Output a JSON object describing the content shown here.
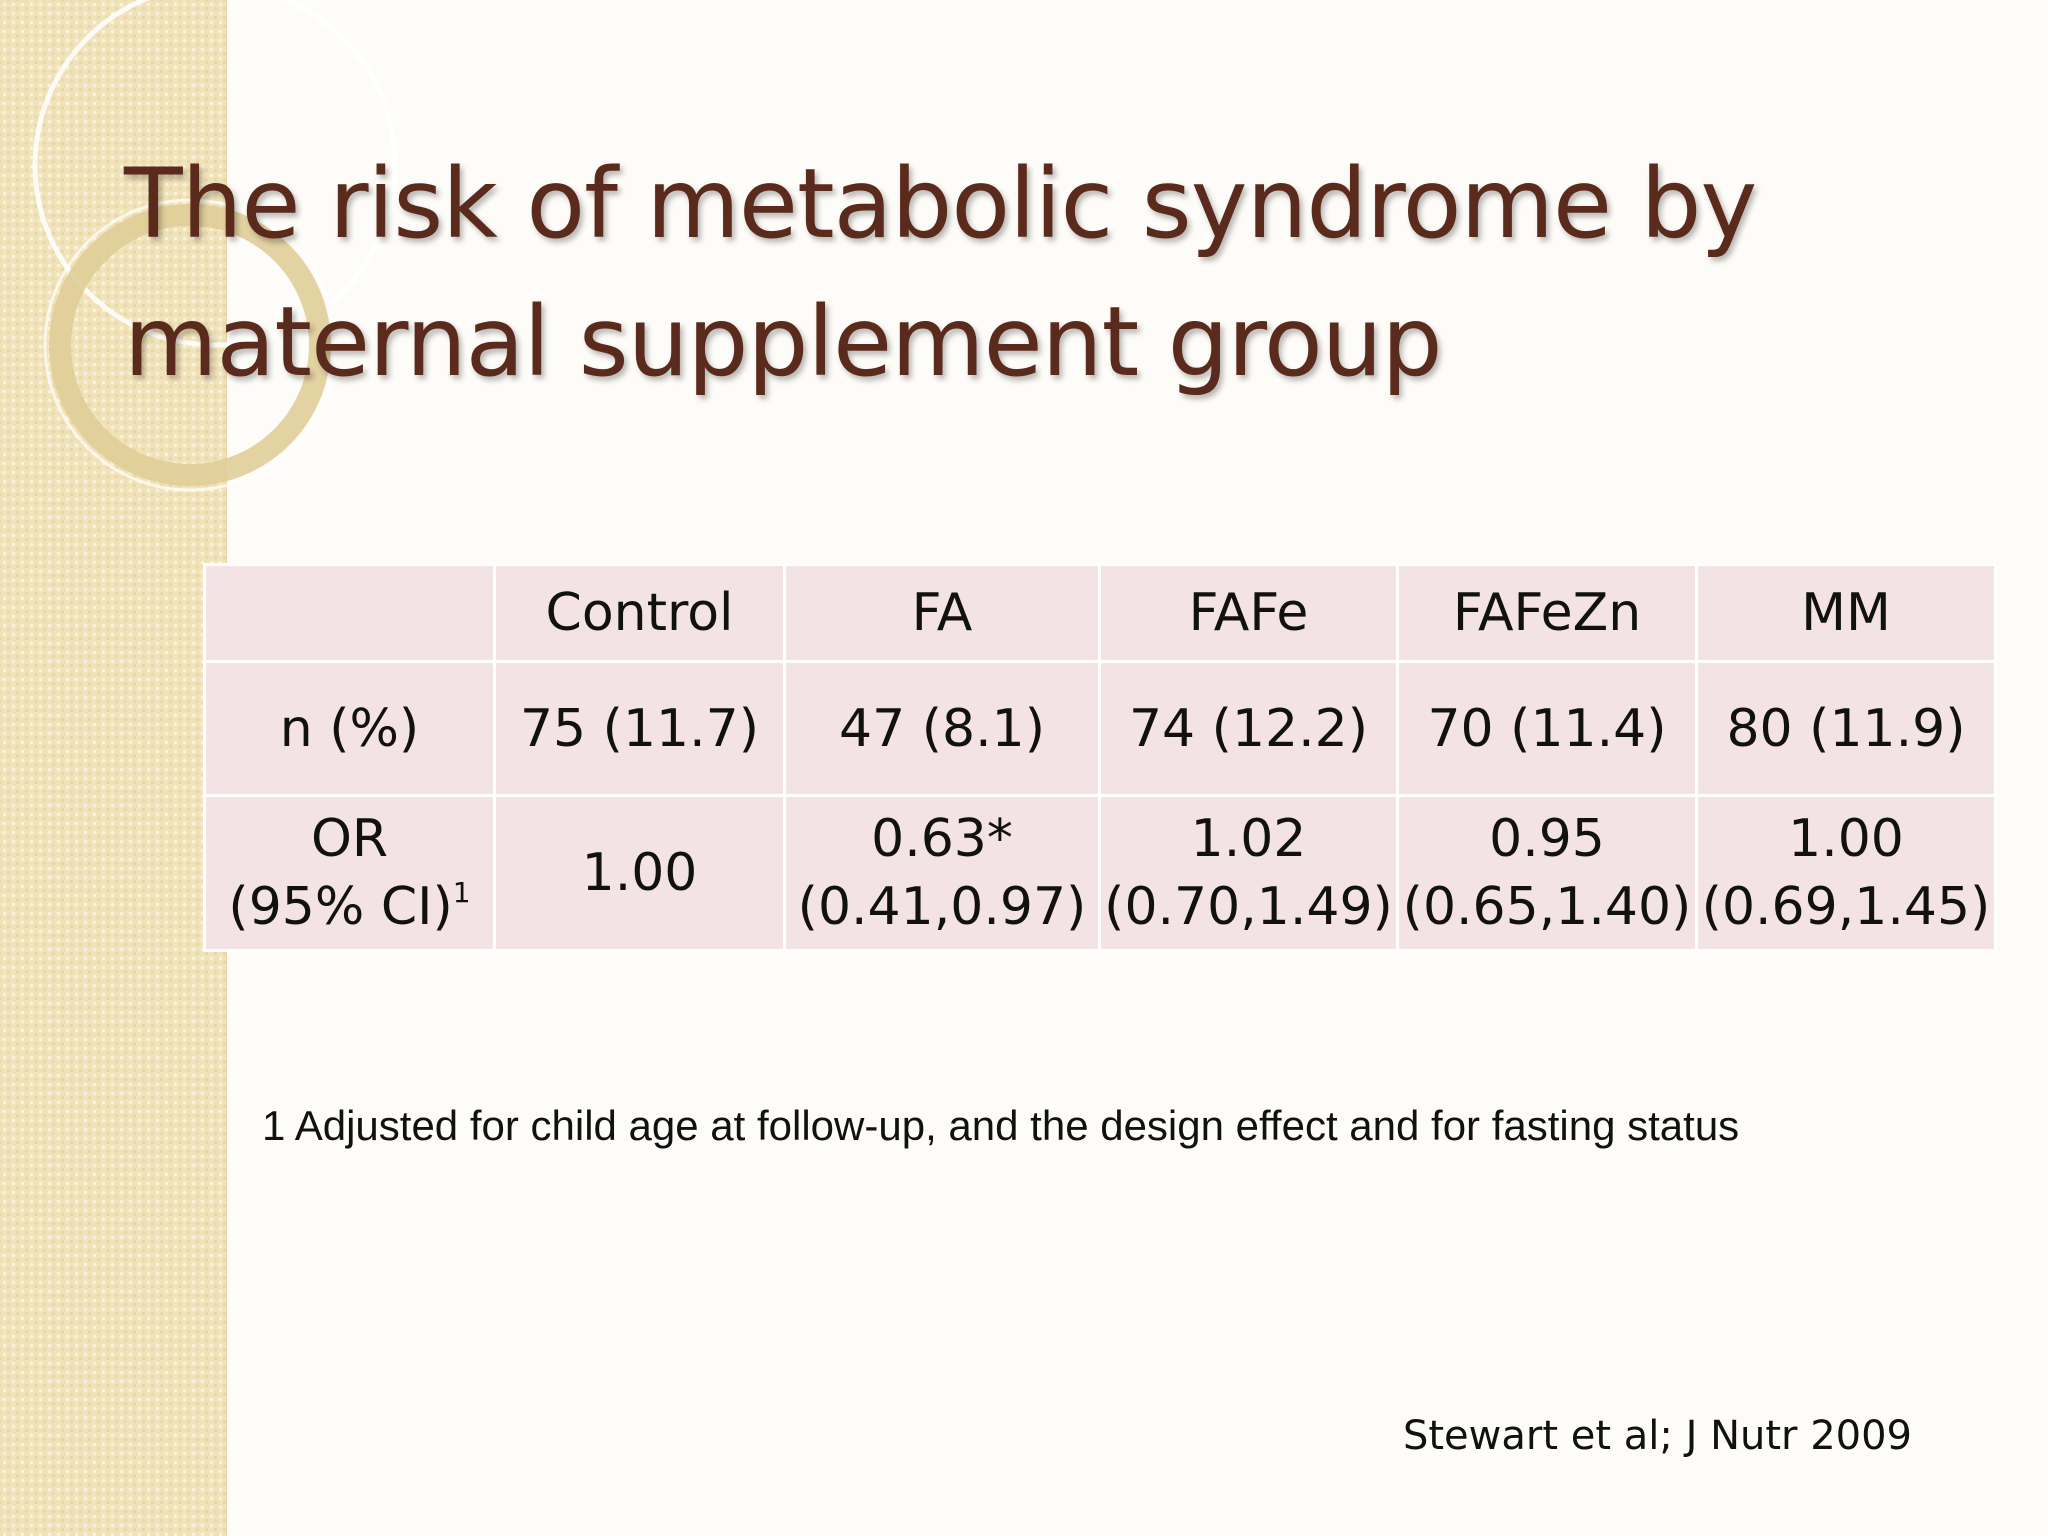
{
  "slide": {
    "title_line1": "The risk of metabolic syndrome by",
    "title_line2": "maternal supplement group"
  },
  "table": {
    "headers": [
      "",
      "Control",
      "FA",
      "FAFe",
      "FAFeZn",
      "MM"
    ],
    "rows": [
      {
        "label": "n (%)",
        "cells": [
          "75 (11.7)",
          "47 (8.1)",
          "74 (12.2)",
          "70 (11.4)",
          "80 (11.9)"
        ]
      },
      {
        "label_line1": "OR",
        "label_line2": "(95% CI)",
        "label_sup": "1",
        "cells": [
          {
            "line1": "1.00",
            "line2": ""
          },
          {
            "line1": "0.63*",
            "line2": "(0.41,0.97)"
          },
          {
            "line1": "1.02",
            "line2": "(0.70,1.49)"
          },
          {
            "line1": "0.95",
            "line2": "(0.65,1.40)"
          },
          {
            "line1": "1.00",
            "line2": "(0.69,1.45)"
          }
        ]
      }
    ]
  },
  "footnote": "1 Adjusted for child age at follow-up, and the design effect and for fasting status",
  "citation": "Stewart et al; J Nutr 2009",
  "colors": {
    "title": "#5a2a1c",
    "cell_background": "#f4e3e5",
    "side_band": "#f1e3b9"
  }
}
